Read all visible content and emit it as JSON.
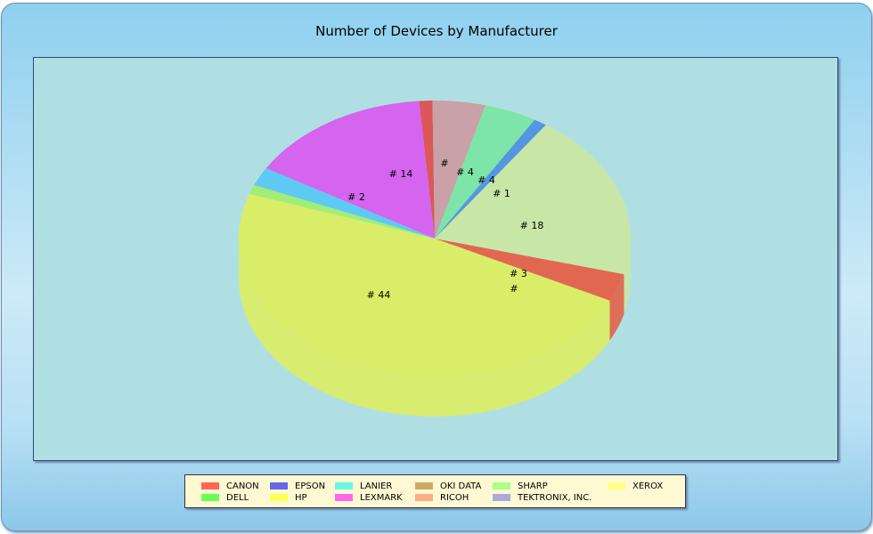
{
  "chart_data": {
    "type": "pie",
    "title": "Number of Devices by Manufacturer",
    "three_d": true,
    "slices": [
      {
        "name": "CANON",
        "value": 3,
        "label": "# 3",
        "color": "#e85a40"
      },
      {
        "name": "HP",
        "value": 44,
        "label": "# 44",
        "color": "#dfee5a"
      },
      {
        "name": "DELL",
        "value": 1,
        "label": "#",
        "color": "#9ef06a"
      },
      {
        "name": "LANIER",
        "value": 2,
        "label": "# 2",
        "color": "#55c8f5"
      },
      {
        "name": "LEXMARK",
        "value": 14,
        "label": "# 14",
        "color": "#d957f0"
      },
      {
        "name": "OKI DATA",
        "value": 1,
        "label": "#",
        "color": "#e04848"
      },
      {
        "name": "RICOH",
        "value": 4,
        "label": "# 4",
        "color": "#cc9aa0"
      },
      {
        "name": "SHARP",
        "value": 4,
        "label": "# 4",
        "color": "#78e6a0"
      },
      {
        "name": "EPSON",
        "value": 1,
        "label": "# 1",
        "color": "#4a8ee0"
      },
      {
        "name": "XEROX",
        "value": 18,
        "label": "# 18",
        "color": "#cbe8a0"
      }
    ],
    "legend": {
      "placement": "bottom",
      "items": [
        {
          "name": "CANON",
          "color": "#ff6655"
        },
        {
          "name": "DELL",
          "color": "#66ff55"
        },
        {
          "name": "EPSON",
          "color": "#6666e6"
        },
        {
          "name": "HP",
          "color": "#ffff55"
        },
        {
          "name": "LANIER",
          "color": "#66f8e6"
        },
        {
          "name": "LEXMARK",
          "color": "#ff66ee"
        },
        {
          "name": "OKI DATA",
          "color": "#ccaa66"
        },
        {
          "name": "RICOH",
          "color": "#ffaa88"
        },
        {
          "name": "SHARP",
          "color": "#aaff88"
        },
        {
          "name": "TEKTRONIX, INC.",
          "color": "#aaaadd"
        },
        {
          "name": "XEROX",
          "color": "#ffff88"
        }
      ]
    }
  }
}
